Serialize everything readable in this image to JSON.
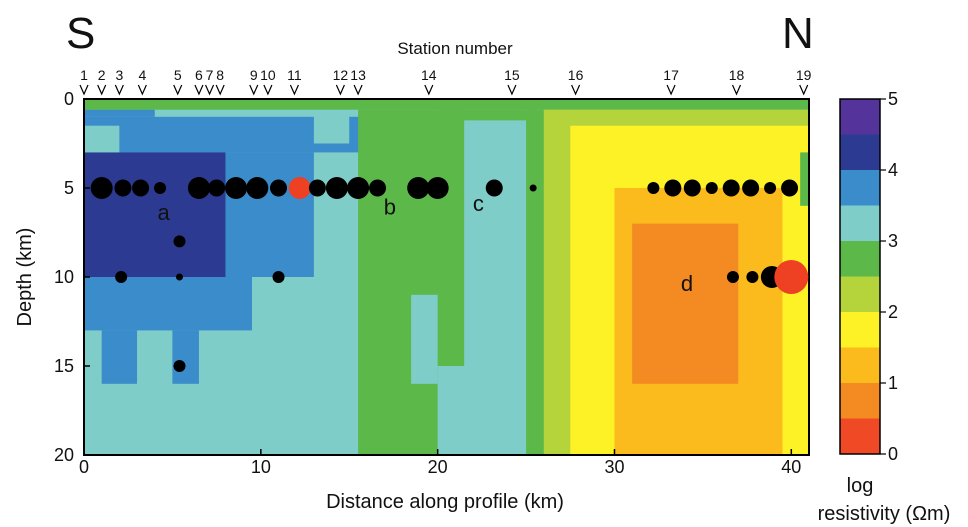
{
  "chart_data": {
    "type": "heatmap",
    "title": "",
    "direction_left": "S",
    "direction_right": "N",
    "top_axis_title": "Station number",
    "stations": [
      {
        "label": "1",
        "x": 0.0
      },
      {
        "label": "2",
        "x": 1.0
      },
      {
        "label": "3",
        "x": 2.0
      },
      {
        "label": "4",
        "x": 3.3
      },
      {
        "label": "5",
        "x": 5.3
      },
      {
        "label": "6",
        "x": 6.5
      },
      {
        "label": "7",
        "x": 7.1
      },
      {
        "label": "8",
        "x": 7.7
      },
      {
        "label": "9",
        "x": 9.6
      },
      {
        "label": "10",
        "x": 10.4
      },
      {
        "label": "11",
        "x": 11.9
      },
      {
        "label": "12",
        "x": 14.5
      },
      {
        "label": "13",
        "x": 15.5
      },
      {
        "label": "14",
        "x": 19.5
      },
      {
        "label": "15",
        "x": 24.2
      },
      {
        "label": "16",
        "x": 27.8
      },
      {
        "label": "17",
        "x": 33.2
      },
      {
        "label": "18",
        "x": 36.9
      },
      {
        "label": "19",
        "x": 40.7
      }
    ],
    "xlabel": "Distance along profile (km)",
    "ylabel": "Depth (km)",
    "xlim": [
      0,
      41
    ],
    "ylim": [
      0,
      20
    ],
    "y_inverted": true,
    "xticks": [
      0,
      10,
      20,
      30,
      40
    ],
    "yticks": [
      0,
      5,
      10,
      15,
      20
    ],
    "colorbar": {
      "label_line1": "log",
      "label_line2": "resistivity (Ωm)",
      "ticks": [
        0,
        1,
        2,
        3,
        4,
        5
      ],
      "bands": [
        {
          "from": 0.0,
          "to": 0.5,
          "color": "#ef4a25"
        },
        {
          "from": 0.5,
          "to": 1.0,
          "color": "#f48a22"
        },
        {
          "from": 1.0,
          "to": 1.5,
          "color": "#fbbb1c"
        },
        {
          "from": 1.5,
          "to": 2.0,
          "color": "#fdf225"
        },
        {
          "from": 2.0,
          "to": 2.5,
          "color": "#b5d33a"
        },
        {
          "from": 2.5,
          "to": 3.0,
          "color": "#5cb848"
        },
        {
          "from": 3.0,
          "to": 3.5,
          "color": "#7fcdc9"
        },
        {
          "from": 3.5,
          "to": 4.0,
          "color": "#3a8ccb"
        },
        {
          "from": 4.0,
          "to": 4.5,
          "color": "#2d3a92"
        },
        {
          "from": 4.5,
          "to": 5.0,
          "color": "#54349a"
        }
      ]
    },
    "background_value": 3.2,
    "regions": [
      {
        "x": [
          0,
          4
        ],
        "y": [
          0.6,
          1.0
        ],
        "value": 3.7
      },
      {
        "x": [
          0,
          16
        ],
        "y": [
          1.0,
          3.0
        ],
        "value": 3.7
      },
      {
        "x": [
          0,
          13
        ],
        "y": [
          3.0,
          10.0
        ],
        "value": 3.7
      },
      {
        "x": [
          0,
          9.5
        ],
        "y": [
          10.0,
          13.0
        ],
        "value": 3.7
      },
      {
        "x": [
          1,
          3
        ],
        "y": [
          13.0,
          16.0
        ],
        "value": 3.7
      },
      {
        "x": [
          5,
          6.5
        ],
        "y": [
          13.0,
          16.0
        ],
        "value": 3.7
      },
      {
        "x": [
          0,
          8
        ],
        "y": [
          3.0,
          10.0
        ],
        "value": 4.2
      },
      {
        "x": [
          0,
          2
        ],
        "y": [
          1.5,
          3.0
        ],
        "value": 3.2
      },
      {
        "x": [
          13,
          15
        ],
        "y": [
          0.8,
          2.5
        ],
        "value": 3.2
      },
      {
        "x": [
          0,
          41
        ],
        "y": [
          0,
          0.6
        ],
        "value": 2.7
      },
      {
        "x": [
          15.5,
          21.5
        ],
        "y": [
          0.6,
          20
        ],
        "value": 2.7
      },
      {
        "x": [
          20,
          25.5
        ],
        "y": [
          0.6,
          1.2
        ],
        "value": 2.7
      },
      {
        "x": [
          25,
          27.5
        ],
        "y": [
          0.6,
          20
        ],
        "value": 2.7
      },
      {
        "x": [
          18.5,
          20
        ],
        "y": [
          11.0,
          16.0
        ],
        "value": 3.2
      },
      {
        "x": [
          20,
          22
        ],
        "y": [
          15.0,
          20
        ],
        "value": 3.2
      },
      {
        "x": [
          26,
          41
        ],
        "y": [
          0.6,
          20
        ],
        "value": 2.2
      },
      {
        "x": [
          27.5,
          41
        ],
        "y": [
          1.5,
          20
        ],
        "value": 1.7
      },
      {
        "x": [
          30,
          39.5
        ],
        "y": [
          5.0,
          20
        ],
        "value": 1.2
      },
      {
        "x": [
          31,
          37
        ],
        "y": [
          7.0,
          16.0
        ],
        "value": 0.7
      },
      {
        "x": [
          40.5,
          41
        ],
        "y": [
          3.0,
          6.0
        ],
        "value": 2.7
      }
    ],
    "sites": [
      {
        "x": 1.0,
        "depth": 5,
        "size": 3,
        "color": "black"
      },
      {
        "x": 2.2,
        "depth": 5,
        "size": 2,
        "color": "black"
      },
      {
        "x": 3.2,
        "depth": 5,
        "size": 2,
        "color": "black"
      },
      {
        "x": 4.3,
        "depth": 5,
        "size": 1,
        "color": "black"
      },
      {
        "x": 6.5,
        "depth": 5,
        "size": 3,
        "color": "black"
      },
      {
        "x": 7.5,
        "depth": 5,
        "size": 2,
        "color": "black"
      },
      {
        "x": 8.6,
        "depth": 5,
        "size": 3,
        "color": "black"
      },
      {
        "x": 9.8,
        "depth": 5,
        "size": 3,
        "color": "black"
      },
      {
        "x": 11.0,
        "depth": 5,
        "size": 2,
        "color": "black"
      },
      {
        "x": 12.2,
        "depth": 5,
        "size": 3,
        "color": "red"
      },
      {
        "x": 13.2,
        "depth": 5,
        "size": 2,
        "color": "black"
      },
      {
        "x": 14.3,
        "depth": 5,
        "size": 3,
        "color": "black"
      },
      {
        "x": 15.5,
        "depth": 5,
        "size": 3,
        "color": "black"
      },
      {
        "x": 16.6,
        "depth": 5,
        "size": 2,
        "color": "black"
      },
      {
        "x": 18.9,
        "depth": 5,
        "size": 3,
        "color": "black"
      },
      {
        "x": 20.0,
        "depth": 5,
        "size": 3,
        "color": "black"
      },
      {
        "x": 23.2,
        "depth": 5,
        "size": 2,
        "color": "black"
      },
      {
        "x": 25.4,
        "depth": 5,
        "size": 0,
        "color": "black"
      },
      {
        "x": 32.2,
        "depth": 5,
        "size": 1,
        "color": "black"
      },
      {
        "x": 33.3,
        "depth": 5,
        "size": 2,
        "color": "black"
      },
      {
        "x": 34.4,
        "depth": 5,
        "size": 2,
        "color": "black"
      },
      {
        "x": 35.5,
        "depth": 5,
        "size": 1,
        "color": "black"
      },
      {
        "x": 36.6,
        "depth": 5,
        "size": 2,
        "color": "black"
      },
      {
        "x": 37.7,
        "depth": 5,
        "size": 2,
        "color": "black"
      },
      {
        "x": 38.8,
        "depth": 5,
        "size": 1,
        "color": "black"
      },
      {
        "x": 39.9,
        "depth": 5,
        "size": 2,
        "color": "black"
      },
      {
        "x": 5.4,
        "depth": 8,
        "size": 1,
        "color": "black"
      },
      {
        "x": 2.1,
        "depth": 10,
        "size": 1,
        "color": "black"
      },
      {
        "x": 5.4,
        "depth": 10,
        "size": 0,
        "color": "black"
      },
      {
        "x": 11.0,
        "depth": 10,
        "size": 1,
        "color": "black"
      },
      {
        "x": 36.7,
        "depth": 10,
        "size": 1,
        "color": "black"
      },
      {
        "x": 37.8,
        "depth": 10,
        "size": 1,
        "color": "black"
      },
      {
        "x": 38.9,
        "depth": 10,
        "size": 3,
        "color": "black"
      },
      {
        "x": 40.0,
        "depth": 10,
        "size": 4,
        "color": "red"
      },
      {
        "x": 5.4,
        "depth": 15,
        "size": 1,
        "color": "black"
      }
    ],
    "annotations": [
      {
        "text": "a",
        "x": 4.5,
        "depth": 6.8
      },
      {
        "text": "b",
        "x": 17.3,
        "depth": 6.5
      },
      {
        "text": "c",
        "x": 22.3,
        "depth": 6.3
      },
      {
        "text": "d",
        "x": 34.1,
        "depth": 10.8
      }
    ]
  }
}
